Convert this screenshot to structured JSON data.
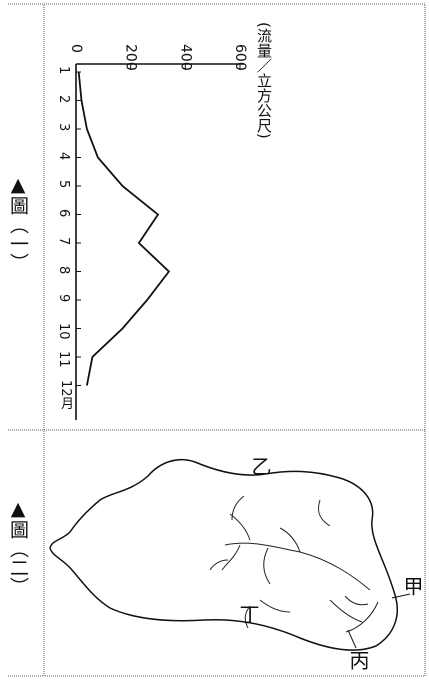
{
  "figure1": {
    "caption": "▲圖（一）",
    "chart_data": {
      "type": "line",
      "ylabel": "(流量／立方公尺)",
      "ylim": [
        0,
        600
      ],
      "yticks": [
        "0",
        "200",
        "400",
        "600"
      ],
      "categories": [
        "1",
        "2",
        "3",
        "4",
        "5",
        "6",
        "7",
        "8",
        "9",
        "10",
        "11",
        "12月"
      ],
      "values": [
        10,
        20,
        40,
        80,
        170,
        300,
        230,
        340,
        260,
        170,
        60,
        40
      ],
      "grid": false,
      "legend": "none"
    }
  },
  "figure2": {
    "caption": "▲圖（二）",
    "labels": [
      "乙",
      "甲",
      "丁",
      "丙"
    ]
  }
}
